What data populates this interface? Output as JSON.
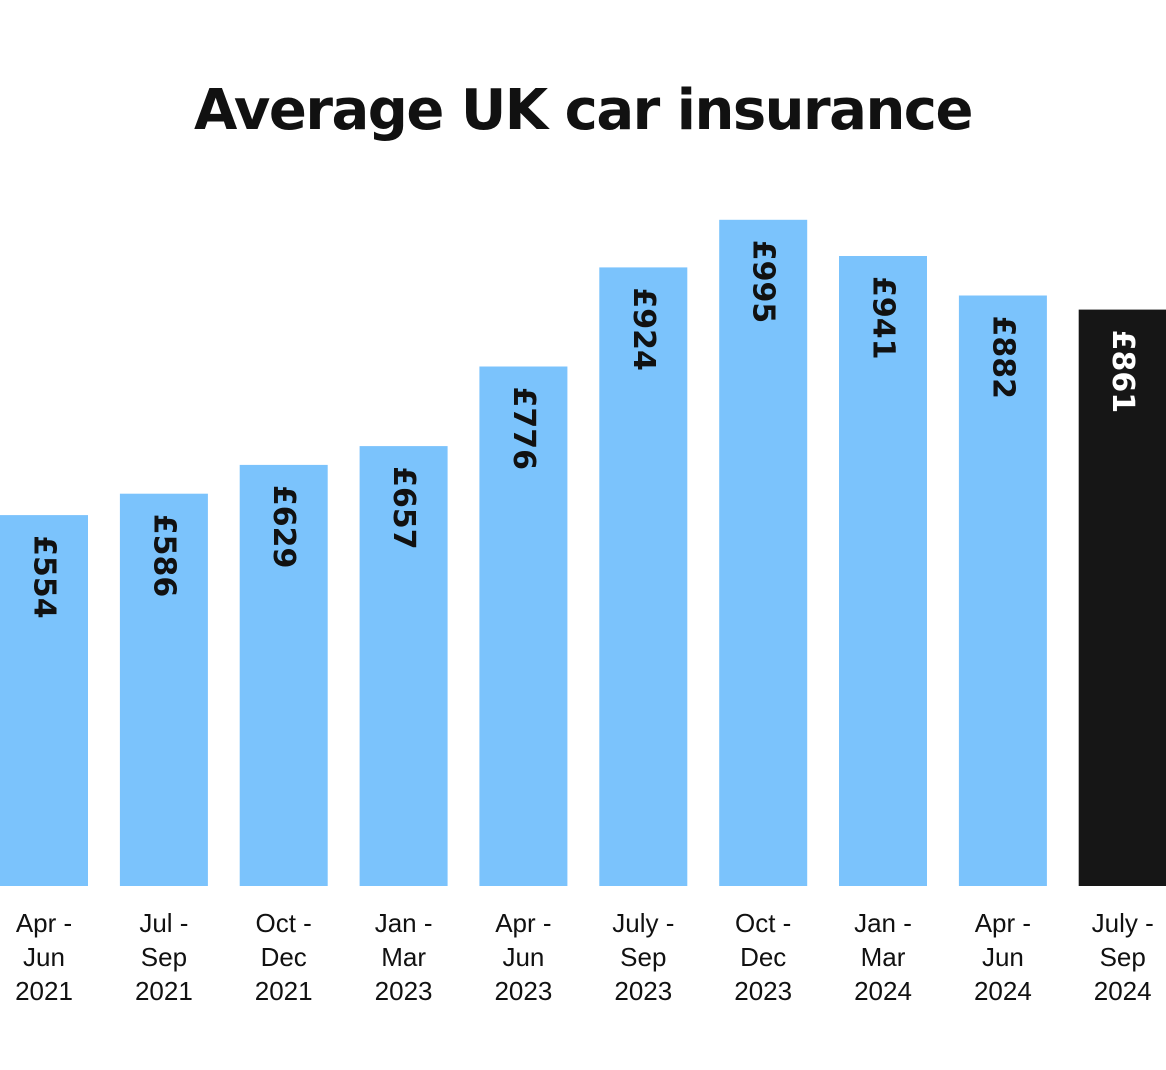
{
  "chart_data": {
    "type": "bar",
    "title": "Average UK car insurance",
    "xlabel": "",
    "ylabel": "",
    "categories": [
      [
        "Apr -",
        "Jun",
        "2021"
      ],
      [
        "Jul -",
        "Sep",
        "2021"
      ],
      [
        "Oct -",
        "Dec",
        "2021"
      ],
      [
        "Jan -",
        "Mar",
        "2023"
      ],
      [
        "Apr -",
        "Jun",
        "2023"
      ],
      [
        "July -",
        "Sep",
        "2023"
      ],
      [
        "Oct -",
        "Dec",
        "2023"
      ],
      [
        "Jan -",
        "Mar",
        "2024"
      ],
      [
        "Apr -",
        "Jun",
        "2024"
      ],
      [
        "July -",
        "Sep",
        "2024"
      ]
    ],
    "values": [
      554,
      586,
      629,
      657,
      776,
      924,
      995,
      941,
      882,
      861
    ],
    "value_labels": [
      "£554",
      "£586",
      "£629",
      "£657",
      "£776",
      "£924",
      "£995",
      "£941",
      "£882",
      "£861"
    ],
    "highlight_index": 9,
    "colors": {
      "bar": "#7bc3fc",
      "highlight_bar": "#161616",
      "label_on_bar": "#111111",
      "label_on_highlight": "#ffffff"
    },
    "grid": false,
    "legend": "none"
  }
}
